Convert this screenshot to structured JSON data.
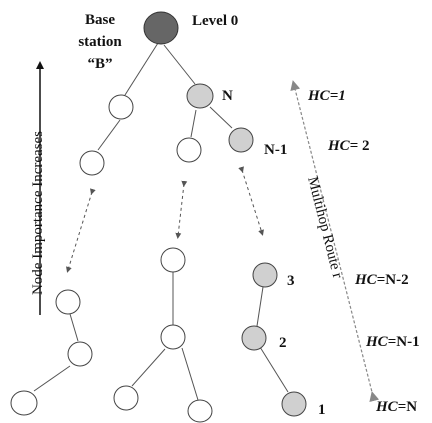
{
  "labels": {
    "base_station_line1": "Base",
    "base_station_line2": "station",
    "base_station_line3": "“B”",
    "level0": "Level 0",
    "node_n": "N",
    "node_n1": "N-1",
    "node_3": "3",
    "node_2": "2",
    "node_1": "1",
    "vertical_axis": "Node Importance Increases",
    "multihop_route": "Multihop Route r"
  },
  "hop_counts": {
    "hc1_prefix": "HC",
    "hc1_suffix": "=1",
    "hc2_prefix": "HC",
    "hc2_suffix": "= 2",
    "hcn2_prefix": "HC",
    "hcn2_suffix": "=N-2",
    "hcn1_prefix": "HC",
    "hcn1_suffix": "=N-1",
    "hcn_prefix": "HC",
    "hcn_suffix": "=N"
  },
  "colors": {
    "base_station": "#666666",
    "route_node": "#d0d0d0",
    "other_node": "#ffffff"
  }
}
